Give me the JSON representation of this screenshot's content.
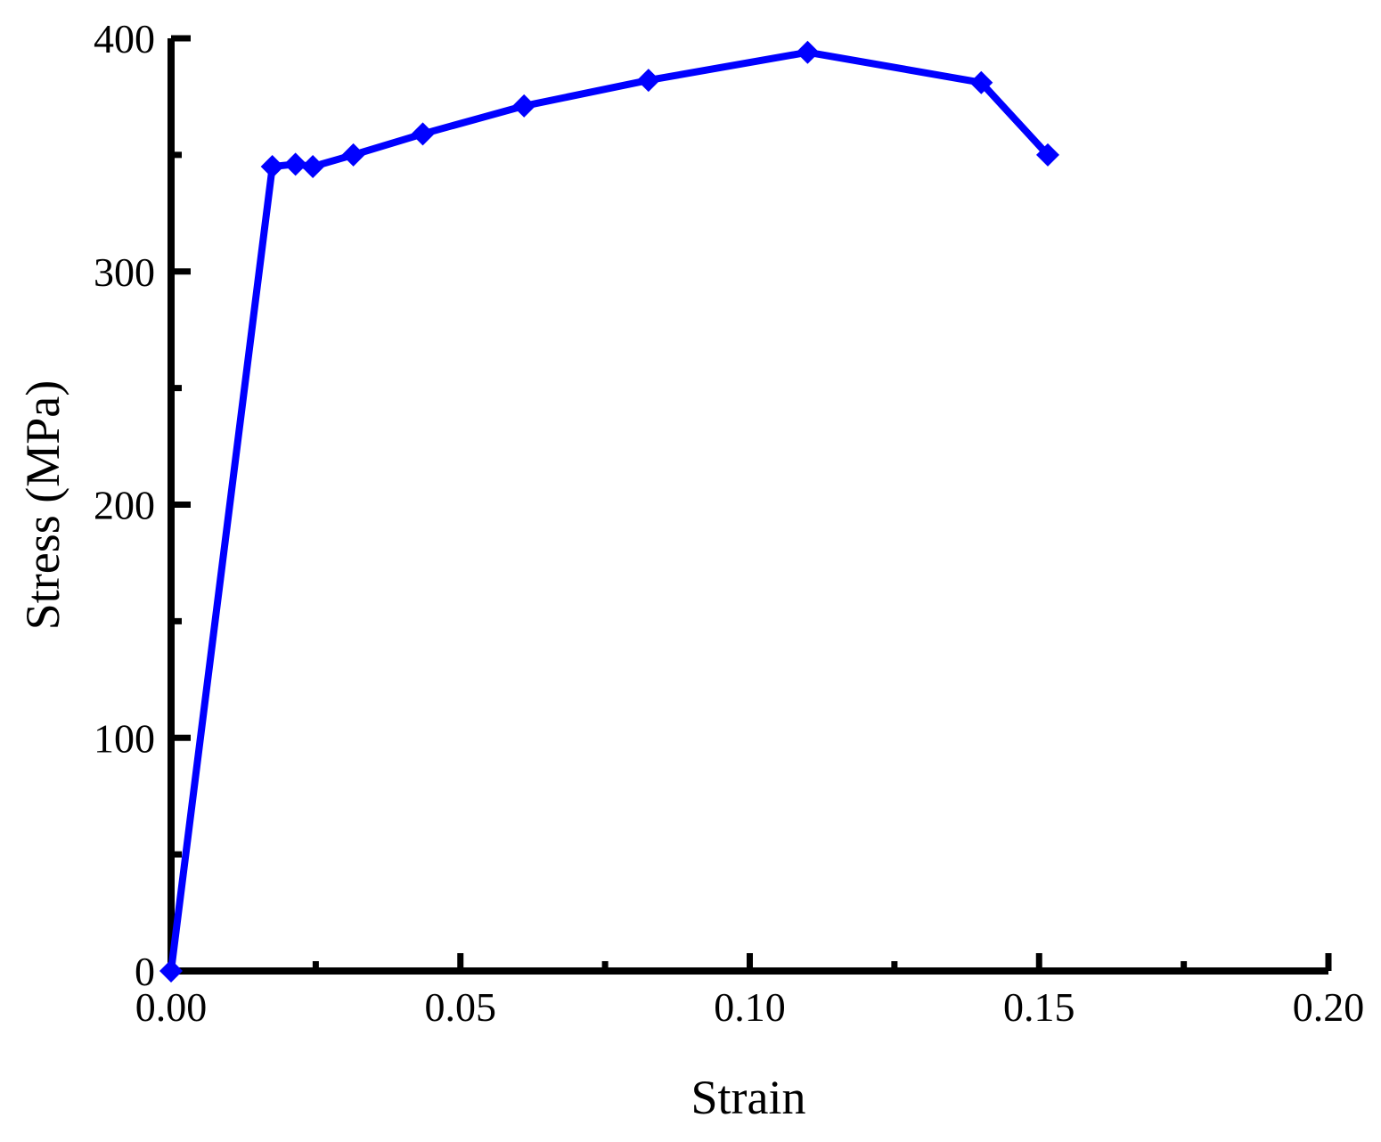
{
  "chart_data": {
    "type": "line",
    "title": "",
    "xlabel": "Strain",
    "ylabel": "Stress (MPa)",
    "xlim": [
      0,
      0.2
    ],
    "ylim": [
      0,
      400
    ],
    "x_ticks": [
      0,
      0.05,
      0.1,
      0.15,
      0.2
    ],
    "x_tick_labels": [
      "0.00",
      "0.05",
      "0.10",
      "0.15",
      "0.20"
    ],
    "x_minor_ticks": [
      0.025,
      0.075,
      0.125,
      0.175
    ],
    "y_ticks": [
      0,
      100,
      200,
      300,
      400
    ],
    "y_tick_labels": [
      "0",
      "100",
      "200",
      "300",
      "400"
    ],
    "y_minor_ticks": [
      50,
      150,
      250,
      350
    ],
    "grid": false,
    "legend": "none",
    "series": [
      {
        "color": "#0000ff",
        "marker": "diamond",
        "x": [
          0,
          0.0175,
          0.0215,
          0.0245,
          0.0315,
          0.0435,
          0.061,
          0.0825,
          0.11,
          0.14,
          0.1515
        ],
        "y": [
          0,
          345,
          346,
          345,
          350,
          359,
          371,
          382,
          394,
          381,
          350
        ]
      }
    ]
  }
}
